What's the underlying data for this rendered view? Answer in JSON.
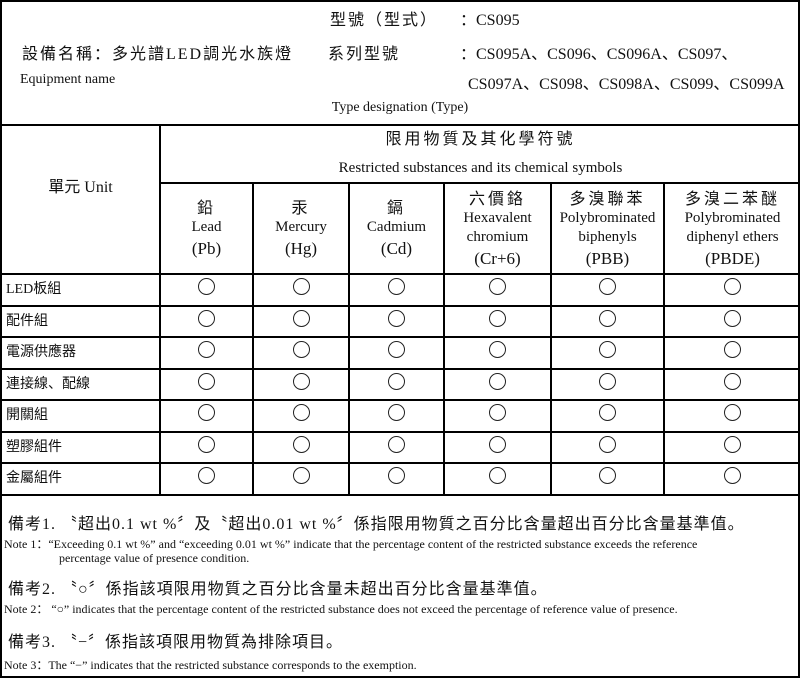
{
  "header": {
    "type_label": "型號（型式）",
    "type_value": "：CS095",
    "equipment_label": "設備名稱：多光譜LED調光水族燈",
    "series_label": "系列型號",
    "series_value_line1": "：CS095A、CS096、CS096A、CS097、",
    "series_value_line2": "CS097A、CS098、CS098A、CS099、CS099A",
    "equipment_name_en": "Equipment name",
    "type_designation": "Type designation (Type)"
  },
  "table": {
    "unit_header": "單元 Unit",
    "group_header_cn": "限用物質及其化學符號",
    "group_header_en": "Restricted substances and its chemical symbols",
    "columns": [
      {
        "cn": "鉛",
        "en": "Lead",
        "symbol": "(Pb)"
      },
      {
        "cn": "汞",
        "en": "Mercury",
        "symbol": "(Hg)"
      },
      {
        "cn": "鎘",
        "en": "Cadmium",
        "symbol": "(Cd)"
      },
      {
        "cn": "六價鉻",
        "en": "Hexavalent chromium",
        "symbol": "(Cr+6)"
      },
      {
        "cn": "多溴聯苯",
        "en": "Polybrominated biphenyls",
        "symbol": "(PBB)"
      },
      {
        "cn": "多溴二苯醚",
        "en": "Polybrominated diphenyl ethers",
        "symbol": "(PBDE)"
      }
    ],
    "rows": [
      {
        "unit": "LED板組",
        "marks": [
          "○",
          "○",
          "○",
          "○",
          "○",
          "○"
        ]
      },
      {
        "unit": "配件組",
        "marks": [
          "○",
          "○",
          "○",
          "○",
          "○",
          "○"
        ]
      },
      {
        "unit": "電源供應器",
        "marks": [
          "○",
          "○",
          "○",
          "○",
          "○",
          "○"
        ]
      },
      {
        "unit": "連接線、配線",
        "marks": [
          "○",
          "○",
          "○",
          "○",
          "○",
          "○"
        ]
      },
      {
        "unit": "開關組",
        "marks": [
          "○",
          "○",
          "○",
          "○",
          "○",
          "○"
        ]
      },
      {
        "unit": "塑膠組件",
        "marks": [
          "○",
          "○",
          "○",
          "○",
          "○",
          "○"
        ]
      },
      {
        "unit": "金屬組件",
        "marks": [
          "○",
          "○",
          "○",
          "○",
          "○",
          "○"
        ]
      }
    ]
  },
  "notes": [
    {
      "cn": "備考1. 〝超出0.1 wt %〞及〝超出0.01 wt %〞係指限用物質之百分比含量超出百分比含量基準值。",
      "en": "Note 1：“Exceeding 0.1 wt %” and “exceeding 0.01 wt %” indicate that the percentage content of the restricted substance exceeds the reference",
      "en2": "percentage value of presence condition."
    },
    {
      "cn": "備考2. 〝○〞係指該項限用物質之百分比含量未超出百分比含量基準值。",
      "en": "Note 2： “○”  indicates that the percentage content of the restricted substance does not exceed the percentage of reference value of presence."
    },
    {
      "cn": "備考3. 〝−〞係指該項限用物質為排除項目。",
      "en": "Note 3：The  “−”  indicates that the restricted substance corresponds to the exemption."
    }
  ]
}
